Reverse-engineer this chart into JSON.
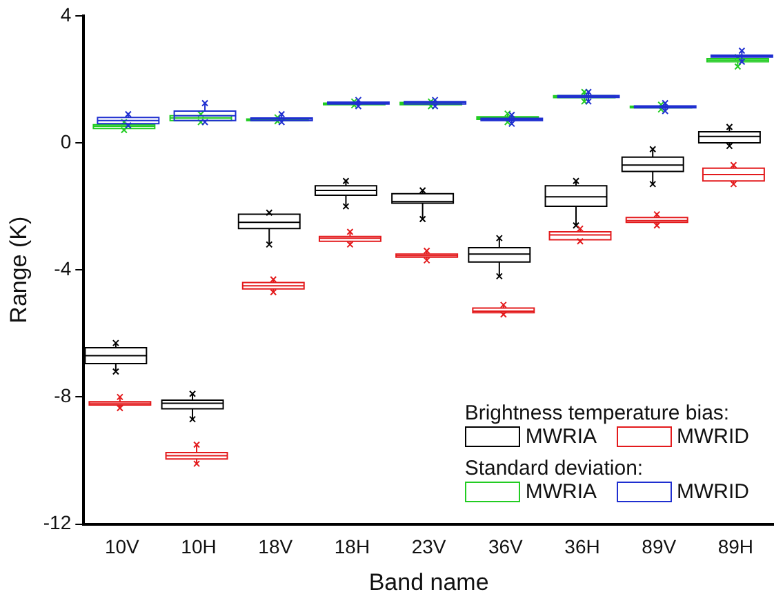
{
  "chart_data": {
    "type": "box",
    "xlabel": "Band name",
    "ylabel": "Range (K)",
    "categories": [
      "10V",
      "10H",
      "18V",
      "18H",
      "23V",
      "36V",
      "36H",
      "89V",
      "89H"
    ],
    "ylim": [
      -12,
      4
    ],
    "yticks": [
      -12,
      -8,
      -4,
      0,
      4
    ],
    "grid": false,
    "legend": "bottom right",
    "annotations": [
      "Brightness temperature bias:",
      "Standard deviation:"
    ],
    "series": [
      {
        "name": "MWRIA",
        "color": "#000000",
        "boxes": [
          {
            "low": -7.2,
            "q1": -6.95,
            "median": -6.7,
            "q3": -6.45,
            "high": -6.3,
            "outliers": [
              -7.2,
              -6.3
            ]
          },
          {
            "low": -8.7,
            "q1": -8.37,
            "median": -8.2,
            "q3": -8.1,
            "high": -7.9,
            "outliers": [
              -8.7,
              -7.9
            ]
          },
          {
            "low": -3.2,
            "q1": -2.7,
            "median": -2.5,
            "q3": -2.25,
            "high": -2.2,
            "outliers": [
              -3.2,
              -2.2
            ]
          },
          {
            "low": -2.0,
            "q1": -1.65,
            "median": -1.5,
            "q3": -1.35,
            "high": -1.2,
            "outliers": [
              -2.0,
              -1.2
            ]
          },
          {
            "low": -2.4,
            "q1": -1.9,
            "median": -1.85,
            "q3": -1.6,
            "high": -1.5,
            "outliers": [
              -2.4,
              -1.5
            ]
          },
          {
            "low": -4.2,
            "q1": -3.75,
            "median": -3.5,
            "q3": -3.3,
            "high": -3.0,
            "outliers": [
              -4.2,
              -3.0
            ]
          },
          {
            "low": -2.6,
            "q1": -2.0,
            "median": -1.7,
            "q3": -1.35,
            "high": -1.2,
            "outliers": [
              -2.6,
              -1.2
            ]
          },
          {
            "low": -1.3,
            "q1": -0.9,
            "median": -0.7,
            "q3": -0.45,
            "high": -0.2,
            "outliers": [
              -1.3,
              -0.2
            ]
          },
          {
            "low": -0.1,
            "q1": 0.0,
            "median": 0.2,
            "q3": 0.35,
            "high": 0.5,
            "outliers": [
              -0.1,
              0.5
            ]
          }
        ]
      },
      {
        "name": "MWRID",
        "color": "#e31a1c",
        "boxes": [
          {
            "low": -8.35,
            "q1": -8.25,
            "median": -8.2,
            "q3": -8.15,
            "high": -8.0,
            "outliers": [
              -8.35,
              -8.0
            ]
          },
          {
            "low": -10.1,
            "q1": -9.95,
            "median": -9.85,
            "q3": -9.75,
            "high": -9.5,
            "outliers": [
              -10.1,
              -9.5
            ]
          },
          {
            "low": -4.7,
            "q1": -4.6,
            "median": -4.5,
            "q3": -4.4,
            "high": -4.3,
            "outliers": [
              -4.7,
              -4.3
            ]
          },
          {
            "low": -3.2,
            "q1": -3.1,
            "median": -3.0,
            "q3": -2.95,
            "high": -2.8,
            "outliers": [
              -3.2,
              -2.8
            ]
          },
          {
            "low": -3.7,
            "q1": -3.6,
            "median": -3.55,
            "q3": -3.5,
            "high": -3.4,
            "outliers": [
              -3.7,
              -3.4
            ]
          },
          {
            "low": -5.4,
            "q1": -5.35,
            "median": -5.3,
            "q3": -5.2,
            "high": -5.1,
            "outliers": [
              -5.4,
              -5.1
            ]
          },
          {
            "low": -3.1,
            "q1": -3.05,
            "median": -2.9,
            "q3": -2.8,
            "high": -2.7,
            "outliers": [
              -3.1,
              -2.7
            ]
          },
          {
            "low": -2.6,
            "q1": -2.5,
            "median": -2.45,
            "q3": -2.35,
            "high": -2.25,
            "outliers": [
              -2.6,
              -2.25
            ]
          },
          {
            "low": -1.3,
            "q1": -1.2,
            "median": -1.0,
            "q3": -0.8,
            "high": -0.7,
            "outliers": [
              -1.3,
              -0.7
            ]
          }
        ]
      },
      {
        "name": "MWRIA",
        "color": "#22cc22",
        "boxes": [
          {
            "low": 0.4,
            "q1": 0.45,
            "median": 0.52,
            "q3": 0.57,
            "high": 0.65,
            "outliers": [
              0.4,
              0.65
            ]
          },
          {
            "low": 0.65,
            "q1": 0.7,
            "median": 0.78,
            "q3": 0.85,
            "high": 0.9,
            "outliers": [
              0.65,
              0.9
            ]
          },
          {
            "low": 0.68,
            "q1": 0.7,
            "median": 0.72,
            "q3": 0.75,
            "high": 0.8,
            "outliers": [
              0.68,
              0.8
            ]
          },
          {
            "low": 1.18,
            "q1": 1.2,
            "median": 1.22,
            "q3": 1.25,
            "high": 1.3,
            "outliers": [
              1.18,
              1.3
            ]
          },
          {
            "low": 1.15,
            "q1": 1.2,
            "median": 1.24,
            "q3": 1.27,
            "high": 1.3,
            "outliers": [
              1.15,
              1.3
            ]
          },
          {
            "low": 0.65,
            "q1": 0.74,
            "median": 0.78,
            "q3": 0.82,
            "high": 0.92,
            "outliers": [
              0.65,
              0.92
            ]
          },
          {
            "low": 1.3,
            "q1": 1.42,
            "median": 1.45,
            "q3": 1.48,
            "high": 1.6,
            "outliers": [
              1.3,
              1.6
            ]
          },
          {
            "low": 1.05,
            "q1": 1.1,
            "median": 1.12,
            "q3": 1.15,
            "high": 1.2,
            "outliers": [
              1.05,
              1.2
            ]
          },
          {
            "low": 2.4,
            "q1": 2.55,
            "median": 2.6,
            "q3": 2.65,
            "high": 2.7,
            "outliers": [
              2.4,
              2.7
            ]
          }
        ]
      },
      {
        "name": "MWRID",
        "color": "#1f2fd0",
        "boxes": [
          {
            "low": 0.55,
            "q1": 0.6,
            "median": 0.7,
            "q3": 0.8,
            "high": 0.9,
            "outliers": [
              0.55,
              0.9
            ]
          },
          {
            "low": 0.65,
            "q1": 0.7,
            "median": 0.85,
            "q3": 1.0,
            "high": 1.25,
            "outliers": [
              0.65,
              1.25
            ]
          },
          {
            "low": 0.65,
            "q1": 0.7,
            "median": 0.75,
            "q3": 0.78,
            "high": 0.9,
            "outliers": [
              0.65,
              0.9
            ]
          },
          {
            "low": 1.15,
            "q1": 1.22,
            "median": 1.25,
            "q3": 1.28,
            "high": 1.35,
            "outliers": [
              1.15,
              1.35
            ]
          },
          {
            "low": 1.15,
            "q1": 1.22,
            "median": 1.27,
            "q3": 1.3,
            "high": 1.35,
            "outliers": [
              1.15,
              1.35
            ]
          },
          {
            "low": 0.6,
            "q1": 0.7,
            "median": 0.74,
            "q3": 0.77,
            "high": 0.88,
            "outliers": [
              0.6,
              0.88
            ]
          },
          {
            "low": 1.3,
            "q1": 1.43,
            "median": 1.46,
            "q3": 1.49,
            "high": 1.6,
            "outliers": [
              1.3,
              1.6
            ]
          },
          {
            "low": 1.0,
            "q1": 1.1,
            "median": 1.13,
            "q3": 1.16,
            "high": 1.25,
            "outliers": [
              1.0,
              1.25
            ]
          },
          {
            "low": 2.55,
            "q1": 2.7,
            "median": 2.73,
            "q3": 2.76,
            "high": 2.9,
            "outliers": [
              2.55,
              2.9
            ]
          }
        ]
      }
    ]
  }
}
